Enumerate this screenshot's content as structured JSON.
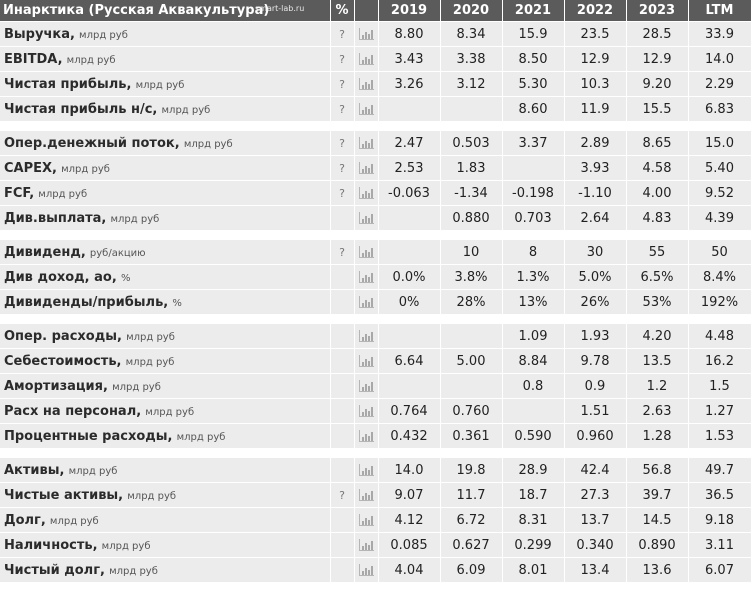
{
  "header": {
    "title": "Инарктика (Русская Аквакультура)",
    "brand": "smart-lab.ru",
    "percent_col": "%",
    "periods": [
      "2019",
      "2020",
      "2021",
      "2022",
      "2023",
      "LTM"
    ]
  },
  "groups": [
    {
      "rows": [
        {
          "name": "Выручка,",
          "unit": "млрд руб",
          "q": "?",
          "values": [
            "8.80",
            "8.34",
            "15.9",
            "23.5",
            "28.5",
            "33.9"
          ]
        },
        {
          "name": "EBITDA,",
          "unit": "млрд руб",
          "q": "?",
          "values": [
            "3.43",
            "3.38",
            "8.50",
            "12.9",
            "12.9",
            "14.0"
          ]
        },
        {
          "name": "Чистая прибыль,",
          "unit": "млрд руб",
          "q": "?",
          "values": [
            "3.26",
            "3.12",
            "5.30",
            "10.3",
            "9.20",
            "2.29"
          ]
        },
        {
          "name": "Чистая прибыль н/с,",
          "unit": "млрд руб",
          "q": "?",
          "values": [
            "",
            "",
            "8.60",
            "11.9",
            "15.5",
            "6.83"
          ]
        }
      ]
    },
    {
      "rows": [
        {
          "name": "Опер.денежный поток,",
          "unit": "млрд руб",
          "q": "?",
          "values": [
            "2.47",
            "0.503",
            "3.37",
            "2.89",
            "8.65",
            "15.0"
          ]
        },
        {
          "name": "CAPEX,",
          "unit": "млрд руб",
          "q": "?",
          "values": [
            "2.53",
            "1.83",
            "",
            "3.93",
            "4.58",
            "5.40"
          ]
        },
        {
          "name": "FCF,",
          "unit": "млрд руб",
          "q": "?",
          "values": [
            "-0.063",
            "-1.34",
            "-0.198",
            "-1.10",
            "4.00",
            "9.52"
          ]
        },
        {
          "name": "Див.выплата,",
          "unit": "млрд руб",
          "q": "",
          "values": [
            "",
            "0.880",
            "0.703",
            "2.64",
            "4.83",
            "4.39"
          ]
        }
      ]
    },
    {
      "rows": [
        {
          "name": "Дивиденд,",
          "unit": "руб/акцию",
          "q": "?",
          "values": [
            "",
            "10",
            "8",
            "30",
            "55",
            "50"
          ]
        },
        {
          "name": "Див доход, ао,",
          "unit": "%",
          "q": "",
          "values": [
            "0.0%",
            "3.8%",
            "1.3%",
            "5.0%",
            "6.5%",
            "8.4%"
          ]
        },
        {
          "name": "Дивиденды/прибыль,",
          "unit": "%",
          "q": "",
          "values": [
            "0%",
            "28%",
            "13%",
            "26%",
            "53%",
            "192%"
          ]
        }
      ]
    },
    {
      "rows": [
        {
          "name": "Опер. расходы,",
          "unit": "млрд руб",
          "q": "",
          "values": [
            "",
            "",
            "1.09",
            "1.93",
            "4.20",
            "4.48"
          ]
        },
        {
          "name": "Себестоимость,",
          "unit": "млрд руб",
          "q": "",
          "values": [
            "6.64",
            "5.00",
            "8.84",
            "9.78",
            "13.5",
            "16.2"
          ]
        },
        {
          "name": "Амортизация,",
          "unit": "млрд руб",
          "q": "",
          "values": [
            "",
            "",
            "0.8",
            "0.9",
            "1.2",
            "1.5"
          ]
        },
        {
          "name": "Расх на персонал,",
          "unit": "млрд руб",
          "q": "",
          "values": [
            "0.764",
            "0.760",
            "",
            "1.51",
            "2.63",
            "1.27"
          ]
        },
        {
          "name": "Процентные расходы,",
          "unit": "млрд руб",
          "q": "",
          "values": [
            "0.432",
            "0.361",
            "0.590",
            "0.960",
            "1.28",
            "1.53"
          ]
        }
      ]
    },
    {
      "rows": [
        {
          "name": "Активы,",
          "unit": "млрд руб",
          "q": "",
          "values": [
            "14.0",
            "19.8",
            "28.9",
            "42.4",
            "56.8",
            "49.7"
          ]
        },
        {
          "name": "Чистые активы,",
          "unit": "млрд руб",
          "q": "?",
          "values": [
            "9.07",
            "11.7",
            "18.7",
            "27.3",
            "39.7",
            "36.5"
          ]
        },
        {
          "name": "Долг,",
          "unit": "млрд руб",
          "q": "",
          "values": [
            "4.12",
            "6.72",
            "8.31",
            "13.7",
            "14.5",
            "9.18"
          ]
        },
        {
          "name": "Наличность,",
          "unit": "млрд руб",
          "q": "",
          "values": [
            "0.085",
            "0.627",
            "0.299",
            "0.340",
            "0.890",
            "3.11"
          ]
        },
        {
          "name": "Чистый долг,",
          "unit": "млрд руб",
          "q": "",
          "values": [
            "4.04",
            "6.09",
            "8.01",
            "13.4",
            "13.6",
            "6.07"
          ]
        }
      ]
    }
  ]
}
